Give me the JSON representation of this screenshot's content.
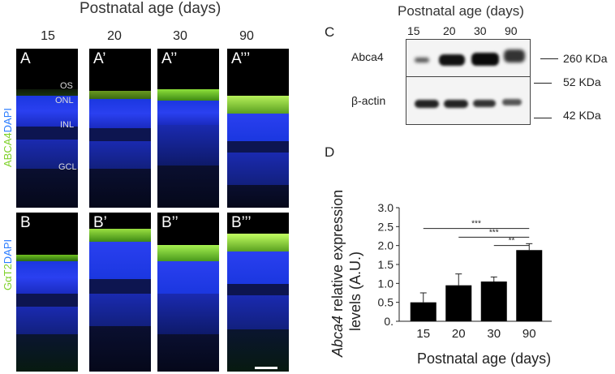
{
  "figure": {
    "left_title": "Postnatal age (days)",
    "ages": [
      "15",
      "20",
      "30",
      "90"
    ],
    "row_a": {
      "labels": [
        "A",
        "A’",
        "A’’",
        "A’’’"
      ],
      "stain_green": "ABCA4",
      "stain_blue": "DAPI",
      "layers": [
        "OS",
        "ONL",
        "INL",
        "GCL"
      ]
    },
    "row_b": {
      "labels": [
        "B",
        "B’",
        "B’’",
        "B’’’"
      ],
      "stain_green": "GαT2",
      "stain_blue": "DAPI"
    },
    "colors": {
      "green": "#7fd12a",
      "blue": "#2a3cff",
      "dark": "#000000"
    }
  },
  "western": {
    "panel_letter": "C",
    "title": "Postnatal age (days)",
    "ages": [
      "15",
      "20",
      "30",
      "90"
    ],
    "rows": [
      "Abca4",
      "β-actin"
    ],
    "markers": [
      "260 KDa",
      "52 KDa",
      "42 KDa"
    ]
  },
  "chart_panel": {
    "panel_letter": "D",
    "significance": [
      "***",
      "***",
      "**"
    ]
  },
  "chart_data": {
    "type": "bar",
    "categories": [
      "15",
      "20",
      "30",
      "90"
    ],
    "values": [
      0.5,
      0.95,
      1.05,
      1.88
    ],
    "errors": [
      0.25,
      0.3,
      0.12,
      0.17
    ],
    "ylim": [
      0,
      3.0
    ],
    "yticks": [
      "0.",
      "0.5",
      "1.0",
      "1.5",
      "2.0",
      "2.5",
      "3.0"
    ],
    "ytick_values": [
      0,
      0.5,
      1.0,
      1.5,
      2.0,
      2.5,
      3.0
    ],
    "xlabel": "Postnatal age (days)",
    "ylabel_italic": "Abca4",
    "ylabel_rest": " relative expression",
    "ylabel_line2": "levels (A.U.)",
    "color": "#000000"
  }
}
